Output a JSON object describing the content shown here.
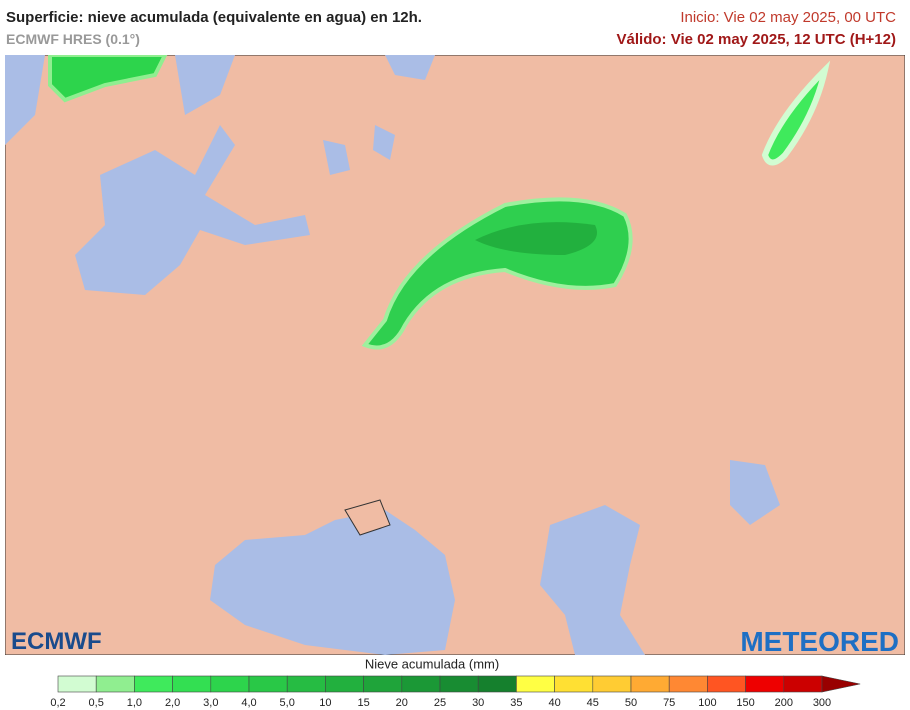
{
  "header": {
    "title": "Superficie: nieve acumulada (equivalente en agua) en 12h.",
    "model": "ECMWF HRES (0.1°)",
    "init": "Inicio: Vie 02 may 2025, 00 UTC",
    "valid": "Válido: Vie 02 may 2025, 12 UTC (H+12)"
  },
  "logos": {
    "left": "ECMWF",
    "right": "METEORED"
  },
  "legend": {
    "title": "Nieve acumulada (mm)",
    "labels": [
      "0,2",
      "0,5",
      "1,0",
      "2,0",
      "3,0",
      "4,0",
      "5,0",
      "10",
      "15",
      "20",
      "25",
      "30",
      "35",
      "40",
      "45",
      "50",
      "75",
      "100",
      "150",
      "200",
      "300"
    ],
    "colors": [
      "#d2fcd2",
      "#90ee90",
      "#3fea5c",
      "#33df52",
      "#2dd44c",
      "#29c847",
      "#26bc43",
      "#22b03e",
      "#1fa43a",
      "#1b9836",
      "#188c32",
      "#15802d",
      "#ffff44",
      "#ffe033",
      "#ffcc33",
      "#ffaa33",
      "#ff8833",
      "#ff5522",
      "#ee0000",
      "#cc0000",
      "#990000"
    ]
  }
}
